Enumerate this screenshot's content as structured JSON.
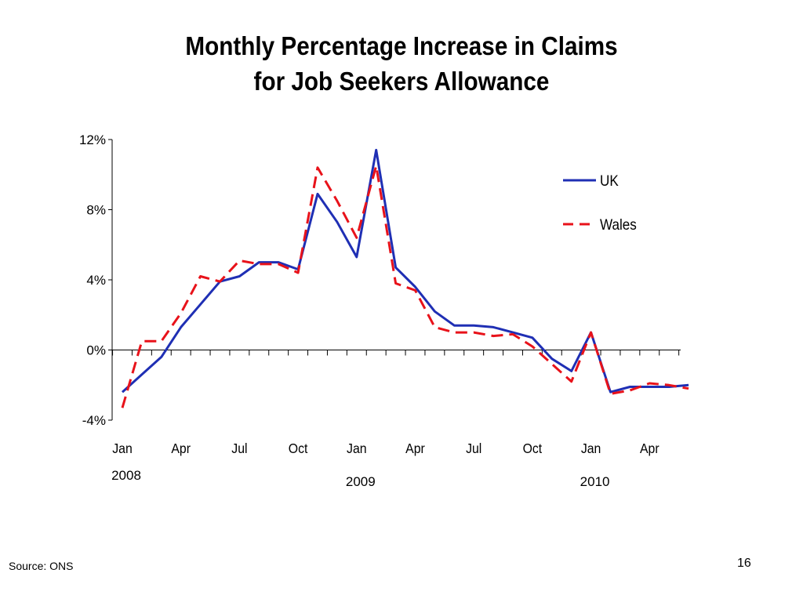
{
  "slide": {
    "title_line1": "Monthly Percentage Increase in Claims",
    "title_line2": "for Job Seekers Allowance",
    "source": "Source: ONS",
    "page_number": "16"
  },
  "chart_data": {
    "type": "line",
    "title": "Monthly Percentage Increase in Claims for Job Seekers Allowance",
    "xlabel": "",
    "ylabel": "",
    "ylim": [
      -4,
      12
    ],
    "yticks": [
      -4,
      0,
      4,
      8,
      12
    ],
    "ytick_labels": [
      "-4%",
      "0%",
      "4%",
      "8%",
      "12%"
    ],
    "x_tick_labels": [
      {
        "index": 0,
        "label": "Jan"
      },
      {
        "index": 3,
        "label": "Apr"
      },
      {
        "index": 6,
        "label": "Jul"
      },
      {
        "index": 9,
        "label": "Oct"
      },
      {
        "index": 12,
        "label": "Jan"
      },
      {
        "index": 15,
        "label": "Apr"
      },
      {
        "index": 18,
        "label": "Jul"
      },
      {
        "index": 21,
        "label": "Oct"
      },
      {
        "index": 24,
        "label": "Jan"
      },
      {
        "index": 27,
        "label": "Apr"
      }
    ],
    "year_labels": [
      {
        "index": 0,
        "label": "2008"
      },
      {
        "index": 12,
        "label": "2009"
      },
      {
        "index": 24,
        "label": "2010"
      }
    ],
    "categories": [
      "Jan 2008",
      "Feb 2008",
      "Mar 2008",
      "Apr 2008",
      "May 2008",
      "Jun 2008",
      "Jul 2008",
      "Aug 2008",
      "Sep 2008",
      "Oct 2008",
      "Nov 2008",
      "Dec 2008",
      "Jan 2009",
      "Feb 2009",
      "Mar 2009",
      "Apr 2009",
      "May 2009",
      "Jun 2009",
      "Jul 2009",
      "Aug 2009",
      "Sep 2009",
      "Oct 2009",
      "Nov 2009",
      "Dec 2009",
      "Jan 2010",
      "Feb 2010",
      "Mar 2010",
      "Apr 2010",
      "May 2010",
      "Jun 2010"
    ],
    "series": [
      {
        "name": "UK",
        "color": "#1f2fb4",
        "style": "solid",
        "values": [
          -2.4,
          -1.4,
          -0.4,
          1.3,
          2.6,
          3.9,
          4.2,
          5.0,
          5.0,
          4.6,
          8.9,
          7.3,
          5.3,
          11.4,
          4.7,
          3.6,
          2.2,
          1.4,
          1.4,
          1.3,
          1.0,
          0.7,
          -0.5,
          -1.2,
          1.0,
          -2.4,
          -2.1,
          -2.1,
          -2.1,
          -2.0
        ]
      },
      {
        "name": "Wales",
        "color": "#e8121a",
        "style": "dashed",
        "values": [
          -3.3,
          0.5,
          0.5,
          2.1,
          4.2,
          3.9,
          5.1,
          4.9,
          4.9,
          4.4,
          10.4,
          8.5,
          6.4,
          10.5,
          3.8,
          3.4,
          1.3,
          1.0,
          1.0,
          0.8,
          0.9,
          0.2,
          -0.8,
          -1.8,
          1.0,
          -2.5,
          -2.3,
          -1.9,
          -2.0,
          -2.2
        ]
      }
    ],
    "legend": {
      "position": "top-right"
    }
  }
}
